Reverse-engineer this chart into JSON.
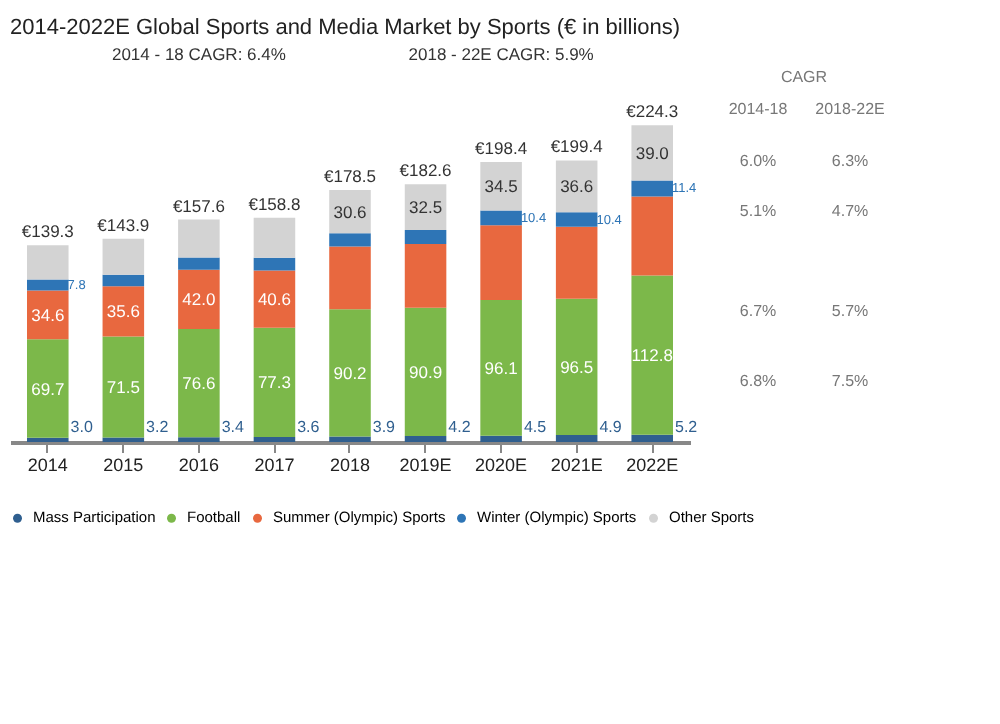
{
  "chart_data": {
    "type": "bar",
    "title": "2014-2022E Global Sports and Media Market by Sports (€ in billions)",
    "categories": [
      "2014",
      "2015",
      "2016",
      "2017",
      "2018",
      "2019E",
      "2020E",
      "2021E",
      "2022E"
    ],
    "stacked": true,
    "legend": "bottom",
    "data_labels": false,
    "series": [
      {
        "name": "Mass Participation",
        "color": "#2f5f8f",
        "values": [
          3.0,
          3.2,
          3.4,
          3.6,
          3.9,
          4.2,
          4.5,
          4.9,
          5.2
        ],
        "value_labels": [
          "3.0",
          "3.2",
          "3.4",
          "3.6",
          "3.9",
          "4.2",
          "4.5",
          "4.9",
          "5.2"
        ]
      },
      {
        "name": "Football",
        "color": "#7cb84a",
        "values": [
          69.7,
          71.5,
          76.6,
          77.3,
          90.2,
          90.9,
          96.1,
          96.5,
          112.8
        ],
        "value_labels": [
          "69.7",
          "71.5",
          "76.6",
          "77.3",
          "90.2",
          "90.9",
          "96.1",
          "96.5",
          "112.8"
        ]
      },
      {
        "name": "Summer (Olympic) Sports",
        "color": "#e8683f",
        "values": [
          34.6,
          35.6,
          42.0,
          40.6,
          44.3,
          45.1,
          52.9,
          51.0,
          55.9
        ],
        "value_labels": [
          "34.6",
          "35.6",
          "42.0",
          "40.6",
          null,
          null,
          null,
          null,
          null
        ]
      },
      {
        "name": "Winter (Olympic) Sports",
        "color": "#2e75b6",
        "values": [
          7.8,
          8.2,
          8.6,
          9.0,
          9.5,
          9.9,
          10.4,
          10.4,
          11.4
        ],
        "value_labels": [
          "7.8",
          null,
          null,
          null,
          null,
          null,
          "10.4",
          "10.4",
          "11.4"
        ]
      },
      {
        "name": "Other Sports",
        "color": "#d3d3d3",
        "values": [
          24.2,
          25.4,
          27.0,
          28.3,
          30.6,
          32.5,
          34.5,
          36.6,
          39.0
        ],
        "value_labels": [
          null,
          null,
          null,
          null,
          "30.6",
          "32.5",
          "34.5",
          "36.6",
          "39.0"
        ]
      }
    ],
    "totals": [
      "€139.3",
      "€143.9",
      "€157.6",
      "€158.8",
      "€178.5",
      "€182.6",
      "€198.4",
      "€199.4",
      "€224.3"
    ],
    "annotations": [
      "2014 - 18 CAGR: 6.4%",
      "2018 - 22E CAGR: 5.9%",
      "CAGR",
      "2014-18",
      "2018-22E",
      "6.0%",
      "6.3%",
      "5.1%",
      "4.7%",
      "6.7%",
      "5.7%",
      "6.8%",
      "7.5%"
    ]
  }
}
